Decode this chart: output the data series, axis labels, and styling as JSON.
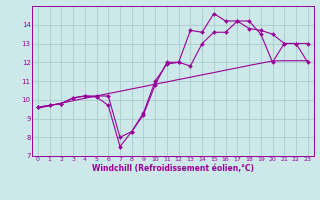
{
  "bg_color": "#cce8e8",
  "grid_color": "#aacccc",
  "line_color": "#990099",
  "xlabel": "Windchill (Refroidissement éolien,°C)",
  "xlim": [
    -0.5,
    23.5
  ],
  "ylim": [
    7,
    15
  ],
  "yticks": [
    7,
    8,
    9,
    10,
    11,
    12,
    13,
    14
  ],
  "xticks": [
    0,
    1,
    2,
    3,
    4,
    5,
    6,
    7,
    8,
    9,
    10,
    11,
    12,
    13,
    14,
    15,
    16,
    17,
    18,
    19,
    20,
    21,
    22,
    23
  ],
  "line1_x": [
    0,
    1,
    2,
    3,
    4,
    5,
    6,
    7,
    8,
    9,
    10,
    11,
    12,
    13,
    14,
    15,
    16,
    17,
    18,
    19,
    20,
    21,
    22,
    23
  ],
  "line1_y": [
    9.55,
    9.68,
    9.82,
    9.95,
    10.08,
    10.2,
    10.33,
    10.45,
    10.58,
    10.7,
    10.83,
    10.95,
    11.08,
    11.2,
    11.33,
    11.45,
    11.58,
    11.7,
    11.83,
    11.95,
    12.07,
    12.08,
    12.08,
    12.08
  ],
  "line2_x": [
    0,
    1,
    2,
    3,
    4,
    5,
    6,
    7,
    8,
    9,
    10,
    11,
    12,
    13,
    14,
    15,
    16,
    17,
    18,
    19,
    20,
    21,
    22,
    23
  ],
  "line2_y": [
    9.6,
    9.7,
    9.8,
    10.1,
    10.2,
    10.2,
    10.2,
    8.0,
    8.3,
    9.3,
    11.0,
    11.9,
    12.0,
    11.8,
    13.0,
    13.6,
    13.6,
    14.2,
    14.2,
    13.5,
    12.0,
    13.0,
    13.0,
    12.0
  ],
  "line3_x": [
    0,
    1,
    2,
    3,
    4,
    5,
    6,
    7,
    8,
    9,
    10,
    11,
    12,
    13,
    14,
    15,
    16,
    17,
    18,
    19,
    20,
    21,
    22,
    23
  ],
  "line3_y": [
    9.6,
    9.7,
    9.8,
    10.1,
    10.2,
    10.15,
    9.7,
    7.5,
    8.3,
    9.2,
    10.8,
    12.0,
    12.0,
    13.7,
    13.6,
    14.6,
    14.2,
    14.2,
    13.8,
    13.7,
    13.5,
    13.0,
    13.0,
    13.0
  ]
}
